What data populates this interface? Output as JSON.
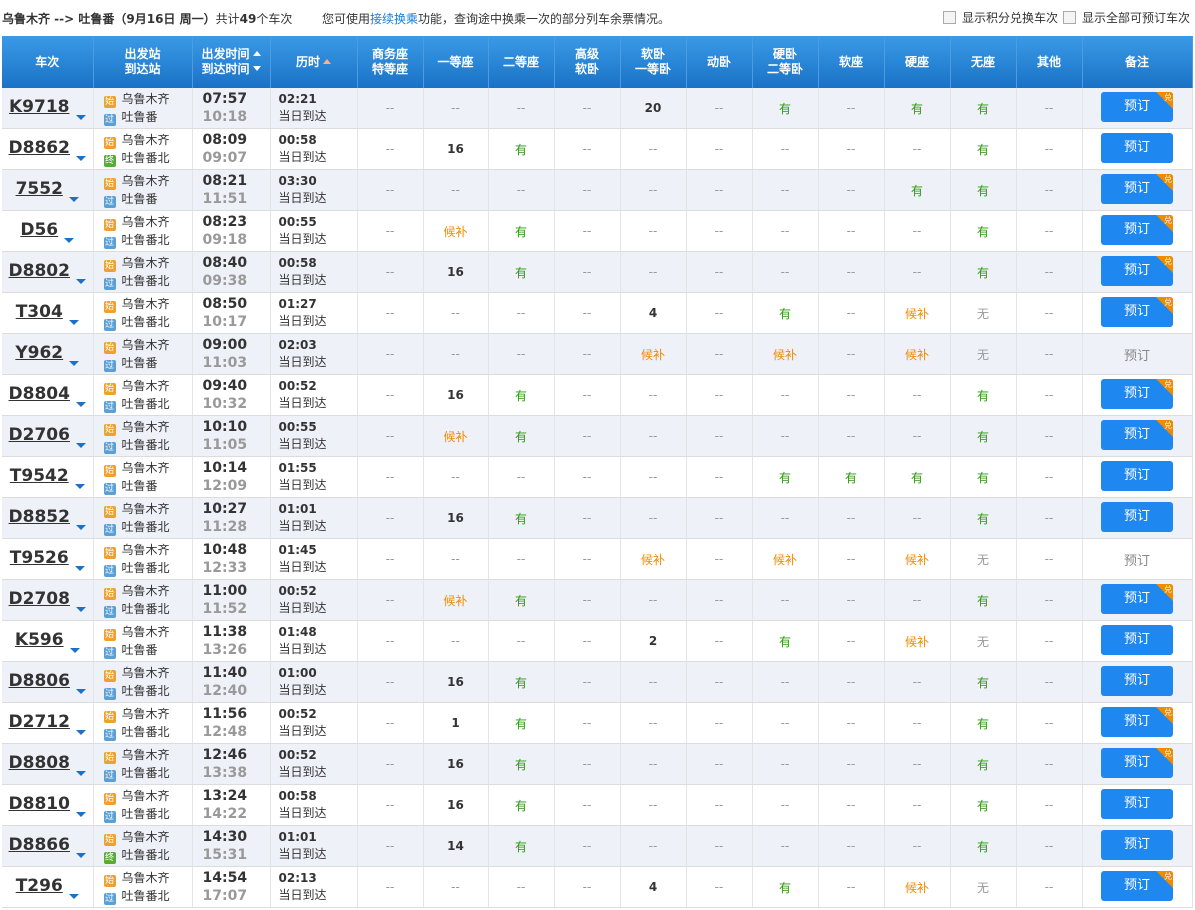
{
  "header": {
    "route": "乌鲁木齐 --> 吐鲁番（9月16日 周一）",
    "count_prefix": "共计",
    "count": "49",
    "count_suffix": "个车次",
    "notice_prefix": "您可使用",
    "notice_link": "接续换乘",
    "notice_suffix": "功能，查询途中换乘一次的部分列车余票情况。",
    "checkbox_points": "显示积分兑换车次",
    "checkbox_all": "显示全部可预订车次"
  },
  "table": {
    "columns": [
      [
        "车次"
      ],
      [
        "出发站",
        "到达站"
      ],
      [
        "出发时间",
        "到达时间"
      ],
      [
        "历时"
      ],
      [
        "商务座",
        "特等座"
      ],
      [
        "一等座"
      ],
      [
        "二等座"
      ],
      [
        "高级",
        "软卧"
      ],
      [
        "软卧",
        "一等卧"
      ],
      [
        "动卧"
      ],
      [
        "硬卧",
        "二等卧"
      ],
      [
        "软座"
      ],
      [
        "硬座"
      ],
      [
        "无座"
      ],
      [
        "其他"
      ],
      [
        "备注"
      ]
    ],
    "rows": [
      {
        "train": "K9718",
        "from_tag": "始",
        "from": "乌鲁木齐",
        "to_tag": "过",
        "to": "吐鲁番",
        "depart": "07:57",
        "arrive": "10:18",
        "duration": "02:21",
        "arrive_day": "当日到达",
        "seats": [
          "--",
          "--",
          "--",
          "--",
          "20",
          "--",
          "有",
          "--",
          "有",
          "有",
          "--"
        ],
        "book": "预订",
        "badge": "兑"
      },
      {
        "train": "D8862",
        "from_tag": "始",
        "from": "乌鲁木齐",
        "to_tag": "终",
        "to": "吐鲁番北",
        "depart": "08:09",
        "arrive": "09:07",
        "duration": "00:58",
        "arrive_day": "当日到达",
        "seats": [
          "--",
          "16",
          "有",
          "--",
          "--",
          "--",
          "--",
          "--",
          "--",
          "有",
          "--"
        ],
        "book": "预订"
      },
      {
        "train": "7552",
        "from_tag": "始",
        "from": "乌鲁木齐",
        "to_tag": "过",
        "to": "吐鲁番",
        "depart": "08:21",
        "arrive": "11:51",
        "duration": "03:30",
        "arrive_day": "当日到达",
        "seats": [
          "--",
          "--",
          "--",
          "--",
          "--",
          "--",
          "--",
          "--",
          "有",
          "有",
          "--"
        ],
        "book": "预订",
        "badge": "兑"
      },
      {
        "train": "D56",
        "from_tag": "始",
        "from": "乌鲁木齐",
        "to_tag": "过",
        "to": "吐鲁番北",
        "depart": "08:23",
        "arrive": "09:18",
        "duration": "00:55",
        "arrive_day": "当日到达",
        "seats": [
          "--",
          "候补",
          "有",
          "--",
          "--",
          "--",
          "--",
          "--",
          "--",
          "有",
          "--"
        ],
        "book": "预订",
        "badge": "兑"
      },
      {
        "train": "D8802",
        "from_tag": "始",
        "from": "乌鲁木齐",
        "to_tag": "过",
        "to": "吐鲁番北",
        "depart": "08:40",
        "arrive": "09:38",
        "duration": "00:58",
        "arrive_day": "当日到达",
        "seats": [
          "--",
          "16",
          "有",
          "--",
          "--",
          "--",
          "--",
          "--",
          "--",
          "有",
          "--"
        ],
        "book": "预订",
        "badge": "兑"
      },
      {
        "train": "T304",
        "from_tag": "始",
        "from": "乌鲁木齐",
        "to_tag": "过",
        "to": "吐鲁番北",
        "depart": "08:50",
        "arrive": "10:17",
        "duration": "01:27",
        "arrive_day": "当日到达",
        "seats": [
          "--",
          "--",
          "--",
          "--",
          "4",
          "--",
          "有",
          "--",
          "候补",
          "无",
          "--"
        ],
        "book": "预订",
        "badge": "兑"
      },
      {
        "train": "Y962",
        "from_tag": "始",
        "from": "乌鲁木齐",
        "to_tag": "过",
        "to": "吐鲁番",
        "depart": "09:00",
        "arrive": "11:03",
        "duration": "02:03",
        "arrive_day": "当日到达",
        "seats": [
          "--",
          "--",
          "--",
          "--",
          "候补",
          "--",
          "候补",
          "--",
          "候补",
          "无",
          "--"
        ],
        "book": "预订",
        "bookable": false
      },
      {
        "train": "D8804",
        "from_tag": "始",
        "from": "乌鲁木齐",
        "to_tag": "过",
        "to": "吐鲁番北",
        "depart": "09:40",
        "arrive": "10:32",
        "duration": "00:52",
        "arrive_day": "当日到达",
        "seats": [
          "--",
          "16",
          "有",
          "--",
          "--",
          "--",
          "--",
          "--",
          "--",
          "有",
          "--"
        ],
        "book": "预订",
        "badge": "兑"
      },
      {
        "train": "D2706",
        "from_tag": "始",
        "from": "乌鲁木齐",
        "to_tag": "过",
        "to": "吐鲁番北",
        "depart": "10:10",
        "arrive": "11:05",
        "duration": "00:55",
        "arrive_day": "当日到达",
        "seats": [
          "--",
          "候补",
          "有",
          "--",
          "--",
          "--",
          "--",
          "--",
          "--",
          "有",
          "--"
        ],
        "book": "预订",
        "badge": "兑"
      },
      {
        "train": "T9542",
        "from_tag": "始",
        "from": "乌鲁木齐",
        "to_tag": "过",
        "to": "吐鲁番",
        "depart": "10:14",
        "arrive": "12:09",
        "duration": "01:55",
        "arrive_day": "当日到达",
        "seats": [
          "--",
          "--",
          "--",
          "--",
          "--",
          "--",
          "有",
          "有",
          "有",
          "有",
          "--"
        ],
        "book": "预订"
      },
      {
        "train": "D8852",
        "from_tag": "始",
        "from": "乌鲁木齐",
        "to_tag": "过",
        "to": "吐鲁番北",
        "depart": "10:27",
        "arrive": "11:28",
        "duration": "01:01",
        "arrive_day": "当日到达",
        "seats": [
          "--",
          "16",
          "有",
          "--",
          "--",
          "--",
          "--",
          "--",
          "--",
          "有",
          "--"
        ],
        "book": "预订"
      },
      {
        "train": "T9526",
        "from_tag": "始",
        "from": "乌鲁木齐",
        "to_tag": "过",
        "to": "吐鲁番北",
        "depart": "10:48",
        "arrive": "12:33",
        "duration": "01:45",
        "arrive_day": "当日到达",
        "seats": [
          "--",
          "--",
          "--",
          "--",
          "候补",
          "--",
          "候补",
          "--",
          "候补",
          "无",
          "--"
        ],
        "book": "预订",
        "bookable": false
      },
      {
        "train": "D2708",
        "from_tag": "始",
        "from": "乌鲁木齐",
        "to_tag": "过",
        "to": "吐鲁番北",
        "depart": "11:00",
        "arrive": "11:52",
        "duration": "00:52",
        "arrive_day": "当日到达",
        "seats": [
          "--",
          "候补",
          "有",
          "--",
          "--",
          "--",
          "--",
          "--",
          "--",
          "有",
          "--"
        ],
        "book": "预订",
        "badge": "兑"
      },
      {
        "train": "K596",
        "from_tag": "始",
        "from": "乌鲁木齐",
        "to_tag": "过",
        "to": "吐鲁番",
        "depart": "11:38",
        "arrive": "13:26",
        "duration": "01:48",
        "arrive_day": "当日到达",
        "seats": [
          "--",
          "--",
          "--",
          "--",
          "2",
          "--",
          "有",
          "--",
          "候补",
          "无",
          "--"
        ],
        "book": "预订"
      },
      {
        "train": "D8806",
        "from_tag": "始",
        "from": "乌鲁木齐",
        "to_tag": "过",
        "to": "吐鲁番北",
        "depart": "11:40",
        "arrive": "12:40",
        "duration": "01:00",
        "arrive_day": "当日到达",
        "seats": [
          "--",
          "16",
          "有",
          "--",
          "--",
          "--",
          "--",
          "--",
          "--",
          "有",
          "--"
        ],
        "book": "预订"
      },
      {
        "train": "D2712",
        "from_tag": "始",
        "from": "乌鲁木齐",
        "to_tag": "过",
        "to": "吐鲁番北",
        "depart": "11:56",
        "arrive": "12:48",
        "duration": "00:52",
        "arrive_day": "当日到达",
        "seats": [
          "--",
          "1",
          "有",
          "--",
          "--",
          "--",
          "--",
          "--",
          "--",
          "有",
          "--"
        ],
        "book": "预订",
        "badge": "兑"
      },
      {
        "train": "D8808",
        "from_tag": "始",
        "from": "乌鲁木齐",
        "to_tag": "过",
        "to": "吐鲁番北",
        "depart": "12:46",
        "arrive": "13:38",
        "duration": "00:52",
        "arrive_day": "当日到达",
        "seats": [
          "--",
          "16",
          "有",
          "--",
          "--",
          "--",
          "--",
          "--",
          "--",
          "有",
          "--"
        ],
        "book": "预订",
        "badge": "兑"
      },
      {
        "train": "D8810",
        "from_tag": "始",
        "from": "乌鲁木齐",
        "to_tag": "过",
        "to": "吐鲁番北",
        "depart": "13:24",
        "arrive": "14:22",
        "duration": "00:58",
        "arrive_day": "当日到达",
        "seats": [
          "--",
          "16",
          "有",
          "--",
          "--",
          "--",
          "--",
          "--",
          "--",
          "有",
          "--"
        ],
        "book": "预订"
      },
      {
        "train": "D8866",
        "from_tag": "始",
        "from": "乌鲁木齐",
        "to_tag": "终",
        "to": "吐鲁番北",
        "depart": "14:30",
        "arrive": "15:31",
        "duration": "01:01",
        "arrive_day": "当日到达",
        "seats": [
          "--",
          "14",
          "有",
          "--",
          "--",
          "--",
          "--",
          "--",
          "--",
          "有",
          "--"
        ],
        "book": "预订"
      },
      {
        "train": "T296",
        "from_tag": "始",
        "from": "乌鲁木齐",
        "to_tag": "过",
        "to": "吐鲁番北",
        "depart": "14:54",
        "arrive": "17:07",
        "duration": "02:13",
        "arrive_day": "当日到达",
        "seats": [
          "--",
          "--",
          "--",
          "--",
          "4",
          "--",
          "有",
          "--",
          "候补",
          "无",
          "--"
        ],
        "book": "预订",
        "badge": "兑"
      }
    ]
  }
}
